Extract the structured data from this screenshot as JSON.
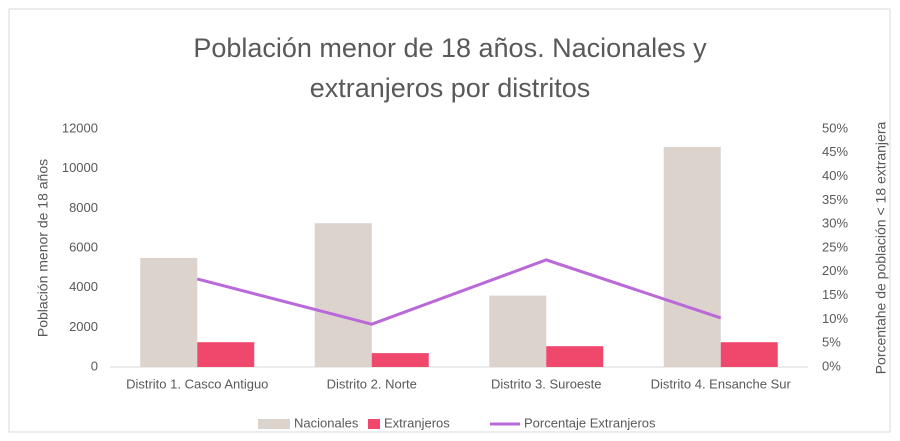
{
  "chart_data": {
    "type": "bar",
    "title": "Población menor de 18 años. Nacionales y extranjeros por distritos",
    "y_label": "Población menor de 18 años",
    "y2_label": "Porcentahe de población < 18 extranjera",
    "categories": [
      "Distrito 1. Casco Antiguo",
      "Distrito 2. Norte",
      "Distrito 3. Suroeste",
      "Distrito 4. Ensanche Sur"
    ],
    "series": [
      {
        "name": "Nacionales",
        "type": "bar",
        "color": "#dcd3cd",
        "values": [
          5500,
          7250,
          3600,
          11100
        ]
      },
      {
        "name": "Extranjeros",
        "type": "bar",
        "color": "#f0476d",
        "values": [
          1250,
          700,
          1050,
          1250
        ]
      },
      {
        "name": "Porcentaje Extranjeros",
        "type": "line",
        "axis": "y2",
        "color": "#b969d8",
        "values": [
          18.5,
          9.0,
          22.5,
          10.3
        ]
      }
    ],
    "ylim": [
      0,
      12000
    ],
    "yticks": [
      0,
      2000,
      4000,
      6000,
      8000,
      10000,
      12000
    ],
    "y2lim": [
      0,
      50
    ],
    "y2ticks": [
      {
        "value": 0,
        "label": "0%"
      },
      {
        "value": 5,
        "label": "5%"
      },
      {
        "value": 10,
        "label": "10%"
      },
      {
        "value": 15,
        "label": "15%"
      },
      {
        "value": 20,
        "label": "20%"
      },
      {
        "value": 25,
        "label": "25%"
      },
      {
        "value": 30,
        "label": "30%"
      },
      {
        "value": 35,
        "label": "35%"
      },
      {
        "value": 40,
        "label": "40%"
      },
      {
        "value": 45,
        "label": "45%"
      },
      {
        "value": 50,
        "label": "50%"
      }
    ],
    "grid": false,
    "legend": "bottom"
  }
}
